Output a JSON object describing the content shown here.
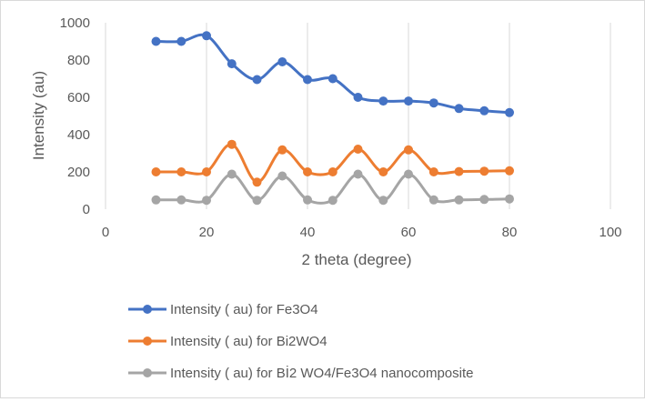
{
  "chart_data": {
    "type": "scatter",
    "title": "",
    "xlabel": "2 theta (degree)",
    "ylabel": "Intensity (au)",
    "xlim": [
      0,
      100
    ],
    "ylim": [
      0,
      1000
    ],
    "x_ticks": [
      0,
      20,
      40,
      60,
      80,
      100
    ],
    "y_ticks": [
      0,
      200,
      400,
      600,
      800,
      1000
    ],
    "grid": "vertical",
    "legend_position": "bottom",
    "x": [
      10,
      15,
      20,
      25,
      30,
      35,
      40,
      45,
      50,
      55,
      60,
      65,
      70,
      75,
      80
    ],
    "series": [
      {
        "name": "Intensity ( au) for Fe3O4",
        "color": "#4472C4",
        "values": [
          900,
          900,
          930,
          780,
          695,
          790,
          695,
          700,
          600,
          580,
          580,
          570,
          540,
          528,
          518
        ]
      },
      {
        "name": "Intensity ( au) for Bi2WO4",
        "color": "#ED7D31",
        "values": [
          200,
          200,
          200,
          348,
          145,
          318,
          200,
          200,
          322,
          200,
          318,
          200,
          202,
          204,
          206
        ]
      },
      {
        "name": "Intensity ( au) for   Bİ2 WO4/Fe3O4 nanocomposite",
        "color": "#A5A5A5",
        "values": [
          50,
          50,
          48,
          188,
          48,
          178,
          50,
          48,
          188,
          48,
          188,
          50,
          50,
          52,
          55
        ]
      }
    ]
  }
}
